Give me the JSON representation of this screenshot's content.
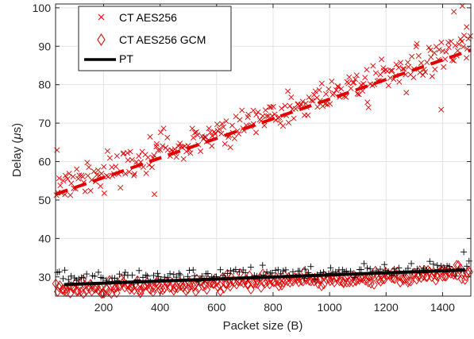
{
  "chart_data": {
    "type": "scatter",
    "xlabel": "Packet size (B)",
    "ylabel_main": "Delay (",
    "ylabel_mu": "μ",
    "ylabel_unit": "s)",
    "xlim": [
      30,
      1500
    ],
    "ylim": [
      25,
      101
    ],
    "xticks": [
      200,
      400,
      600,
      800,
      1000,
      1200,
      1400
    ],
    "yticks": [
      30,
      40,
      50,
      60,
      70,
      80,
      90,
      100
    ],
    "grid": true,
    "legend_position": "top-left",
    "series": [
      {
        "name": "CT AES256",
        "marker": "x",
        "color": "#e00000",
        "trend": {
          "style": "dashed",
          "x": [
            30,
            1500
          ],
          "y": [
            51.5,
            89
          ]
        },
        "scatter_model": {
          "x_start": 30,
          "x_end": 1500,
          "count": 300,
          "y_start": 53,
          "y_end": 90,
          "noise": 3.2,
          "seed": 11
        },
        "outliers": [
          {
            "x": 35,
            "y": 63
          },
          {
            "x": 380,
            "y": 51.5
          },
          {
            "x": 1395,
            "y": 73.5
          },
          {
            "x": 1470,
            "y": 100.5
          },
          {
            "x": 1440,
            "y": 99
          },
          {
            "x": 1485,
            "y": 95
          }
        ]
      },
      {
        "name": "CT AES256 GCM",
        "marker": "diamond",
        "color": "#e00000",
        "scatter_model": {
          "x_start": 30,
          "x_end": 1500,
          "count": 300,
          "y_start": 26.5,
          "y_end": 31,
          "noise": 1.4,
          "seed": 23
        },
        "outliers": []
      },
      {
        "name": "PT",
        "marker": "+",
        "color": "#000000",
        "trend": {
          "style": "solid",
          "x": [
            60,
            1480
          ],
          "y": [
            28,
            31.8
          ]
        },
        "scatter_model": {
          "x_start": 30,
          "x_end": 1500,
          "count": 150,
          "y_start": 29.5,
          "y_end": 32.5,
          "noise": 1.2,
          "seed": 37
        },
        "outliers": [
          {
            "x": 1475,
            "y": 36.5
          }
        ]
      }
    ]
  },
  "legend": {
    "items": [
      {
        "label": "CT AES256"
      },
      {
        "label": "CT AES256 GCM"
      },
      {
        "label": "PT"
      }
    ]
  }
}
